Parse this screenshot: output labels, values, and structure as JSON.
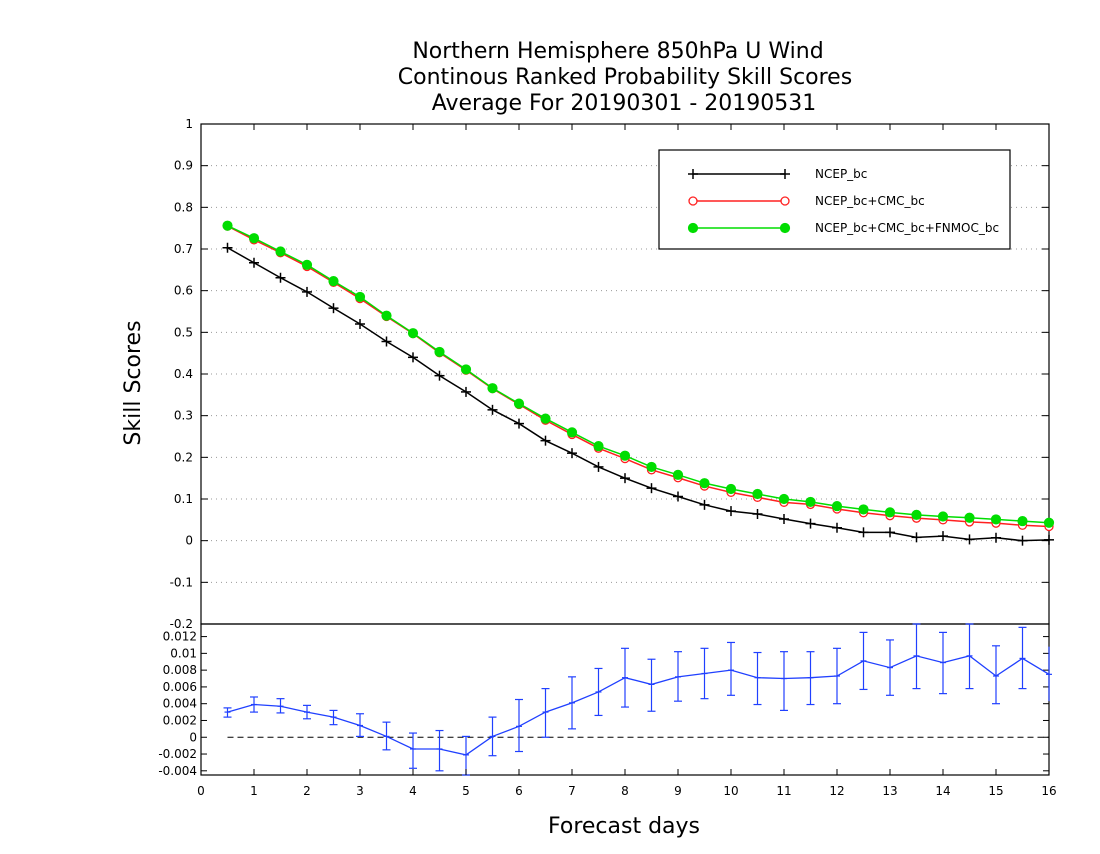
{
  "chart_data": [
    {
      "type": "line",
      "title": [
        "Northern Hemisphere 850hPa U Wind",
        "Continous Ranked Probability Skill Scores",
        "Average For 20190301 - 20190531"
      ],
      "xlabel": "Forecast days",
      "ylabel": "Skill Scores",
      "xlim": [
        0,
        16
      ],
      "ylim": [
        -0.2,
        1
      ],
      "xticks": [
        "0",
        "1",
        "2",
        "3",
        "4",
        "5",
        "6",
        "7",
        "8",
        "9",
        "10",
        "11",
        "12",
        "13",
        "14",
        "15",
        "16"
      ],
      "yticks": [
        "-0.2",
        "-0.1",
        "0",
        "0.1",
        "0.2",
        "0.3",
        "0.4",
        "0.5",
        "0.6",
        "0.7",
        "0.8",
        "0.9",
        "1"
      ],
      "grid": "dotted-horizontal",
      "legend_position": "top-right",
      "x": [
        0.5,
        1,
        1.5,
        2,
        2.5,
        3,
        3.5,
        4,
        4.5,
        5,
        5.5,
        6,
        6.5,
        7,
        7.5,
        8,
        8.5,
        9,
        9.5,
        10,
        10.5,
        11,
        11.5,
        12,
        12.5,
        13,
        13.5,
        14,
        14.5,
        15,
        15.5,
        16
      ],
      "series": [
        {
          "name": "NCEP_bc",
          "color": "#000000",
          "marker": "plus",
          "values": [
            0.703,
            0.667,
            0.631,
            0.597,
            0.558,
            0.52,
            0.478,
            0.44,
            0.396,
            0.357,
            0.314,
            0.281,
            0.24,
            0.21,
            0.177,
            0.15,
            0.126,
            0.106,
            0.086,
            0.071,
            0.064,
            0.052,
            0.041,
            0.031,
            0.02,
            0.02,
            0.008,
            0.011,
            0.003,
            0.007,
            0.0,
            0.002
          ]
        },
        {
          "name": "NCEP_bc+CMC_bc",
          "color": "#ff2020",
          "marker": "open-circle",
          "values": [
            0.755,
            0.722,
            0.691,
            0.658,
            0.62,
            0.581,
            0.538,
            0.497,
            0.451,
            0.409,
            0.365,
            0.327,
            0.289,
            0.255,
            0.222,
            0.197,
            0.17,
            0.151,
            0.131,
            0.116,
            0.104,
            0.092,
            0.087,
            0.076,
            0.067,
            0.06,
            0.054,
            0.05,
            0.045,
            0.042,
            0.037,
            0.034
          ]
        },
        {
          "name": "NCEP_bc+CMC_bc+FNMOC_bc",
          "color": "#00dd00",
          "marker": "filled-circle",
          "values": [
            0.756,
            0.726,
            0.694,
            0.662,
            0.623,
            0.585,
            0.54,
            0.498,
            0.453,
            0.411,
            0.366,
            0.329,
            0.293,
            0.26,
            0.227,
            0.204,
            0.177,
            0.158,
            0.138,
            0.124,
            0.112,
            0.1,
            0.093,
            0.083,
            0.075,
            0.068,
            0.062,
            0.058,
            0.055,
            0.051,
            0.047,
            0.043
          ]
        }
      ]
    },
    {
      "type": "line",
      "xlim": [
        0,
        16
      ],
      "ylim": [
        -0.0045,
        0.0135
      ],
      "yticks": [
        "-0.004",
        "-0.002",
        "0",
        "0.002",
        "0.004",
        "0.006",
        "0.008",
        "0.01",
        "0.012"
      ],
      "reference_line": 0,
      "error_bars": true,
      "color": "#2040ff",
      "x": [
        0.5,
        1,
        1.5,
        2,
        2.5,
        3,
        3.5,
        4,
        4.5,
        5,
        5.5,
        6,
        6.5,
        7,
        7.5,
        8,
        8.5,
        9,
        9.5,
        10,
        10.5,
        11,
        11.5,
        12,
        12.5,
        13,
        13.5,
        14,
        14.5,
        15,
        15.5,
        16
      ],
      "values": [
        0.003,
        0.0039,
        0.0037,
        0.003,
        0.0024,
        0.0014,
        0.0001,
        -0.0014,
        -0.0014,
        -0.0021,
        0.0001,
        0.0013,
        0.003,
        0.0041,
        0.0054,
        0.0071,
        0.0063,
        0.0072,
        0.0076,
        0.008,
        0.0071,
        0.007,
        0.0071,
        0.0073,
        0.0091,
        0.0083,
        0.0097,
        0.0089,
        0.0097,
        0.0073,
        0.0094,
        0.0075
      ],
      "lower": [
        0.0024,
        0.003,
        0.0029,
        0.0022,
        0.0015,
        0.0001,
        -0.0015,
        -0.0037,
        -0.004,
        -0.0045,
        -0.0022,
        -0.0017,
        0.0,
        0.001,
        0.0026,
        0.0036,
        0.0031,
        0.0043,
        0.0046,
        0.005,
        0.0039,
        0.0032,
        0.0039,
        0.004,
        0.0057,
        0.005,
        0.0058,
        0.0052,
        0.0058,
        0.004,
        0.0058,
        0.0043
      ],
      "upper": [
        0.0035,
        0.0048,
        0.0046,
        0.0038,
        0.0032,
        0.0028,
        0.0018,
        0.0005,
        0.0008,
        0.0001,
        0.0024,
        0.0045,
        0.0058,
        0.0072,
        0.0082,
        0.0106,
        0.0093,
        0.0102,
        0.0106,
        0.0113,
        0.0101,
        0.0102,
        0.0102,
        0.0106,
        0.0125,
        0.0116,
        0.0135,
        0.0125,
        0.0135,
        0.0109,
        0.0131,
        0.0108
      ]
    }
  ]
}
